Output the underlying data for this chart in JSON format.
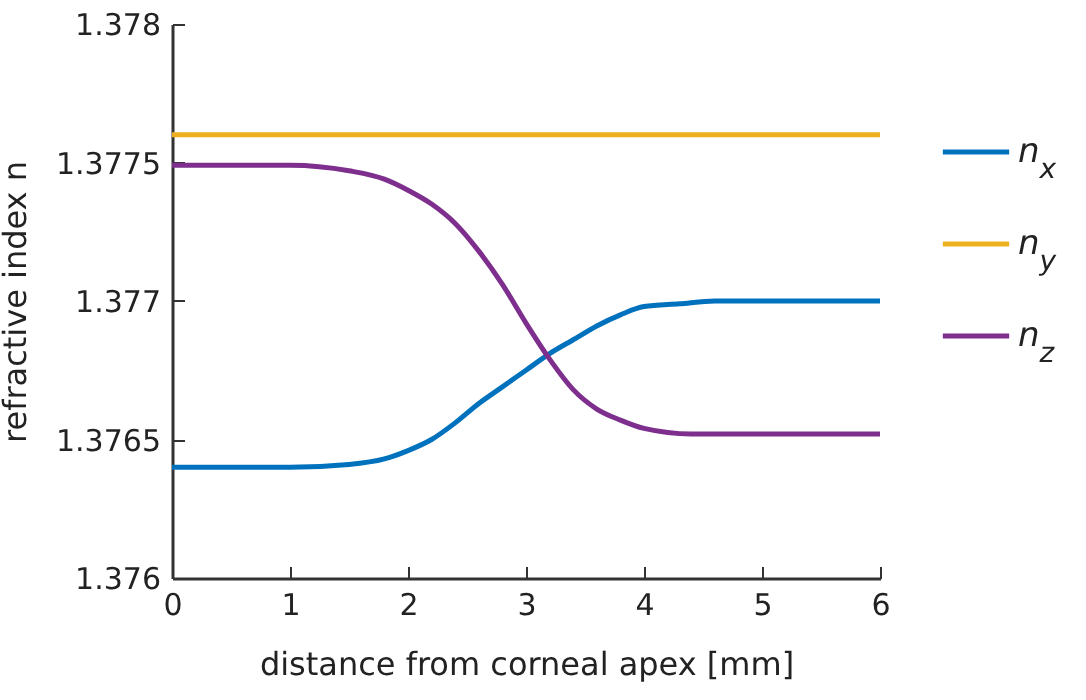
{
  "chart_data": {
    "type": "line",
    "xlabel": "distance from corneal apex [mm]",
    "ylabel": "refractive index  n",
    "xlim": [
      0,
      6
    ],
    "xticks": [
      0,
      1,
      2,
      3,
      4,
      5,
      6
    ],
    "ylim": [
      1.376,
      1.378
    ],
    "yticks": [
      1.376,
      1.3765,
      1.377,
      1.3775,
      1.378
    ],
    "grid": false,
    "legend": "right",
    "marker": "none",
    "line_style": "solid",
    "series": [
      {
        "name": "n$_{x}$",
        "color": "#0072bd",
        "x": [
          0,
          1,
          1.5,
          1.8,
          2,
          2.2,
          2.4,
          2.6,
          2.8,
          3,
          3.2,
          3.4,
          3.6,
          3.8,
          4,
          4.3,
          4.6,
          5,
          6
        ],
        "values": [
          1.3764,
          1.3764,
          1.37641,
          1.37643,
          1.37646,
          1.3765,
          1.37656,
          1.37663,
          1.37669,
          1.37675,
          1.37681,
          1.37686,
          1.37691,
          1.37695,
          1.37698,
          1.37699,
          1.377,
          1.377,
          1.377
        ]
      },
      {
        "name": "n$_{y}$",
        "color": "#edb120",
        "x": [
          0,
          6
        ],
        "values": [
          1.3776,
          1.3776
        ]
      },
      {
        "name": "n$_{z}$",
        "color": "#7e2f8e",
        "x": [
          0,
          1,
          1.5,
          1.8,
          2,
          2.2,
          2.4,
          2.6,
          2.8,
          3,
          3.2,
          3.4,
          3.6,
          3.8,
          4,
          4.4,
          5,
          6
        ],
        "values": [
          1.37749,
          1.37749,
          1.37747,
          1.37744,
          1.3774,
          1.37735,
          1.37728,
          1.37718,
          1.37706,
          1.37692,
          1.37679,
          1.37668,
          1.37661,
          1.37657,
          1.37654,
          1.37652,
          1.37652,
          1.37652
        ]
      }
    ]
  }
}
